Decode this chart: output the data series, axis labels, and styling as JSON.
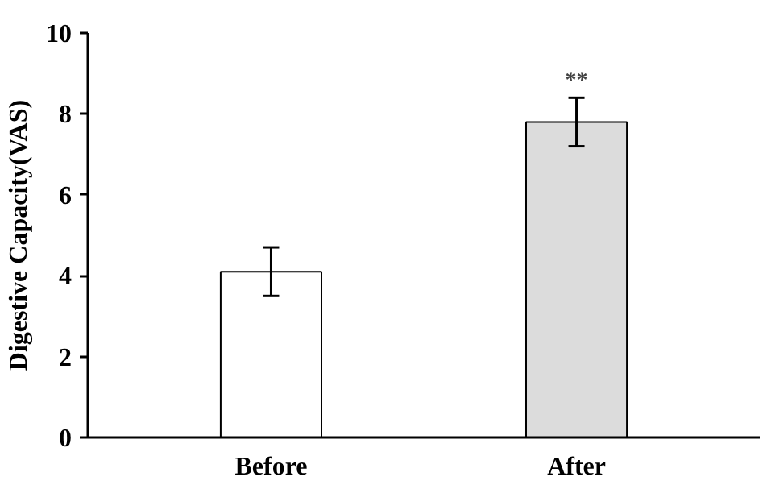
{
  "chart_data": {
    "type": "bar",
    "ylabel": "Digestive Capacity(VAS)",
    "categories": [
      "Before",
      "After"
    ],
    "values": [
      4.1,
      7.8
    ],
    "colors": [
      "#ffffff",
      "#dcdcdc"
    ],
    "errors": [
      0.6,
      0.6
    ],
    "ylim": [
      0,
      10
    ],
    "yticks": [
      0,
      2,
      4,
      6,
      8,
      10
    ],
    "grid": false,
    "annotations": [
      {
        "text": "**",
        "x": "After",
        "y": 8.5
      }
    ]
  }
}
